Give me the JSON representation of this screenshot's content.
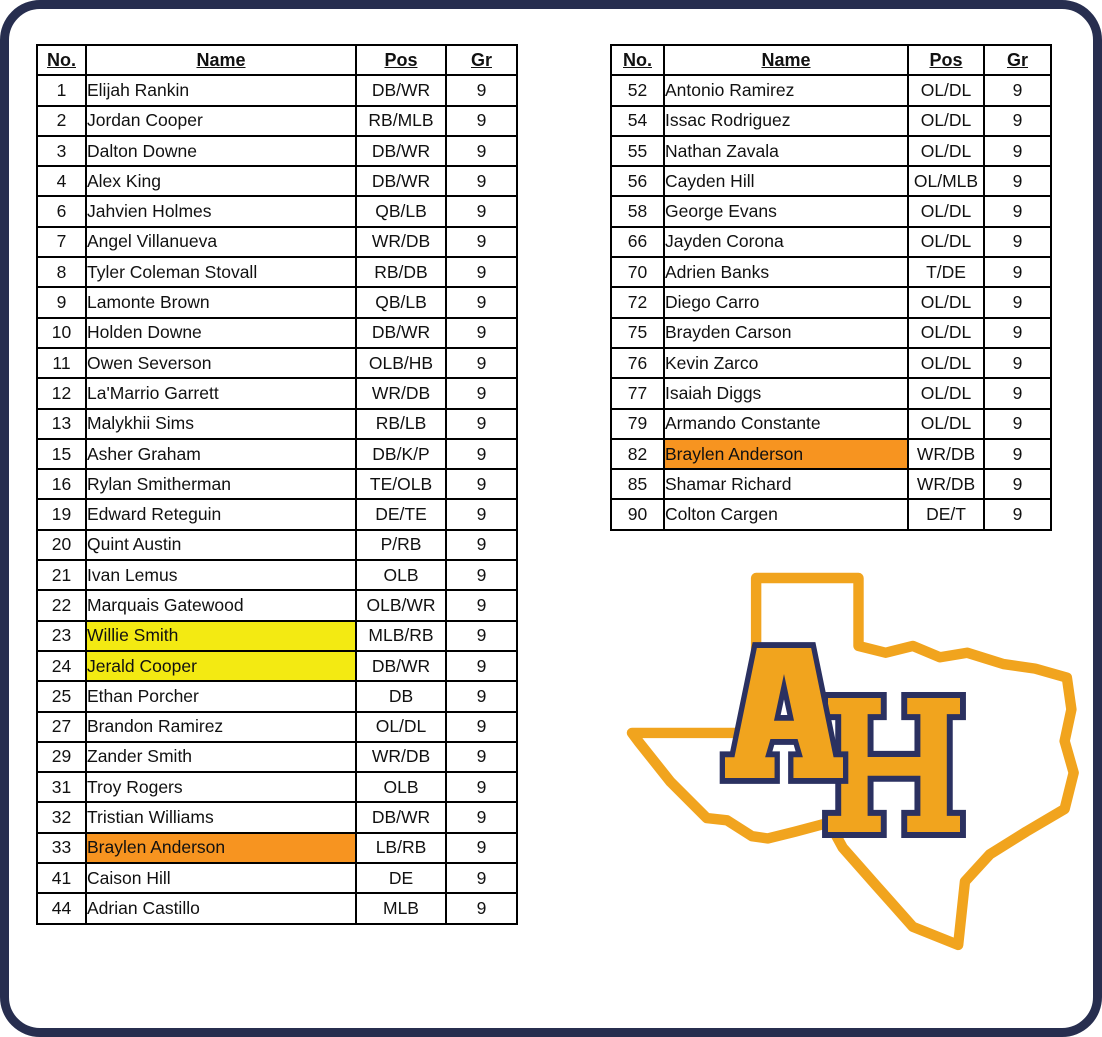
{
  "colors": {
    "page_border": "#272e4f",
    "table_border": "#000000",
    "highlight_yellow": "#f3ea12",
    "highlight_orange": "#f79420",
    "logo_gold": "#f1a41e",
    "logo_navy": "#2b3161"
  },
  "tables": {
    "headers": {
      "no": "No.",
      "name": "Name",
      "pos": "Pos",
      "gr": "Gr"
    },
    "left": {
      "rows": [
        {
          "no": "1",
          "name": "Elijah Rankin",
          "pos": "DB/WR",
          "gr": "9"
        },
        {
          "no": "2",
          "name": "Jordan Cooper",
          "pos": "RB/MLB",
          "gr": "9"
        },
        {
          "no": "3",
          "name": "Dalton Downe",
          "pos": "DB/WR",
          "gr": "9"
        },
        {
          "no": "4",
          "name": "Alex King",
          "pos": "DB/WR",
          "gr": "9"
        },
        {
          "no": "6",
          "name": "Jahvien Holmes",
          "pos": "QB/LB",
          "gr": "9"
        },
        {
          "no": "7",
          "name": "Angel Villanueva",
          "pos": "WR/DB",
          "gr": "9"
        },
        {
          "no": "8",
          "name": "Tyler Coleman Stovall",
          "pos": "RB/DB",
          "gr": "9"
        },
        {
          "no": "9",
          "name": "Lamonte Brown",
          "pos": "QB/LB",
          "gr": "9"
        },
        {
          "no": "10",
          "name": "Holden Downe",
          "pos": "DB/WR",
          "gr": "9"
        },
        {
          "no": "11",
          "name": "Owen Severson",
          "pos": "OLB/HB",
          "gr": "9"
        },
        {
          "no": "12",
          "name": "La'Marrio Garrett",
          "pos": "WR/DB",
          "gr": "9"
        },
        {
          "no": "13",
          "name": "Malykhii Sims",
          "pos": "RB/LB",
          "gr": "9"
        },
        {
          "no": "15",
          "name": "Asher Graham",
          "pos": "DB/K/P",
          "gr": "9"
        },
        {
          "no": "16",
          "name": "Rylan Smitherman",
          "pos": "TE/OLB",
          "gr": "9"
        },
        {
          "no": "19",
          "name": "Edward Reteguin",
          "pos": "DE/TE",
          "gr": "9"
        },
        {
          "no": "20",
          "name": "Quint Austin",
          "pos": "P/RB",
          "gr": "9"
        },
        {
          "no": "21",
          "name": "Ivan Lemus",
          "pos": "OLB",
          "gr": "9"
        },
        {
          "no": "22",
          "name": "Marquais Gatewood",
          "pos": "OLB/WR",
          "gr": "9"
        },
        {
          "no": "23",
          "name": "Willie Smith",
          "pos": "MLB/RB",
          "gr": "9",
          "highlight": "yellow"
        },
        {
          "no": "24",
          "name": "Jerald Cooper",
          "pos": "DB/WR",
          "gr": "9",
          "highlight": "yellow"
        },
        {
          "no": "25",
          "name": "Ethan Porcher",
          "pos": "DB",
          "gr": "9"
        },
        {
          "no": "27",
          "name": "Brandon Ramirez",
          "pos": "OL/DL",
          "gr": "9"
        },
        {
          "no": "29",
          "name": "Zander Smith",
          "pos": "WR/DB",
          "gr": "9"
        },
        {
          "no": "31",
          "name": "Troy Rogers",
          "pos": "OLB",
          "gr": "9"
        },
        {
          "no": "32",
          "name": "Tristian Williams",
          "pos": "DB/WR",
          "gr": "9"
        },
        {
          "no": "33",
          "name": "Braylen Anderson",
          "pos": "LB/RB",
          "gr": "9",
          "highlight": "orange"
        },
        {
          "no": "41",
          "name": "Caison Hill",
          "pos": "DE",
          "gr": "9"
        },
        {
          "no": "44",
          "name": "Adrian Castillo",
          "pos": "MLB",
          "gr": "9"
        }
      ]
    },
    "right": {
      "rows": [
        {
          "no": "52",
          "name": "Antonio Ramirez",
          "pos": "OL/DL",
          "gr": "9"
        },
        {
          "no": "54",
          "name": "Issac Rodriguez",
          "pos": "OL/DL",
          "gr": "9"
        },
        {
          "no": "55",
          "name": "Nathan Zavala",
          "pos": "OL/DL",
          "gr": "9"
        },
        {
          "no": "56",
          "name": "Cayden Hill",
          "pos": "OL/MLB",
          "gr": "9"
        },
        {
          "no": "58",
          "name": "George Evans",
          "pos": "OL/DL",
          "gr": "9"
        },
        {
          "no": "66",
          "name": "Jayden Corona",
          "pos": "OL/DL",
          "gr": "9"
        },
        {
          "no": "70",
          "name": "Adrien Banks",
          "pos": "T/DE",
          "gr": "9"
        },
        {
          "no": "72",
          "name": "Diego Carro",
          "pos": "OL/DL",
          "gr": "9"
        },
        {
          "no": "75",
          "name": "Brayden Carson",
          "pos": "OL/DL",
          "gr": "9"
        },
        {
          "no": "76",
          "name": "Kevin Zarco",
          "pos": "OL/DL",
          "gr": "9"
        },
        {
          "no": "77",
          "name": "Isaiah Diggs",
          "pos": "OL/DL",
          "gr": "9"
        },
        {
          "no": "79",
          "name": "Armando Constante",
          "pos": "OL/DL",
          "gr": "9"
        },
        {
          "no": "82",
          "name": "Braylen Anderson",
          "pos": "WR/DB",
          "gr": "9",
          "highlight": "orange"
        },
        {
          "no": "85",
          "name": "Shamar Richard",
          "pos": "WR/DB",
          "gr": "9"
        },
        {
          "no": "90",
          "name": "Colton Cargen",
          "pos": "DE/T",
          "gr": "9"
        }
      ]
    }
  },
  "logo": {
    "letters": "AH",
    "shape": "texas-state-outline"
  }
}
